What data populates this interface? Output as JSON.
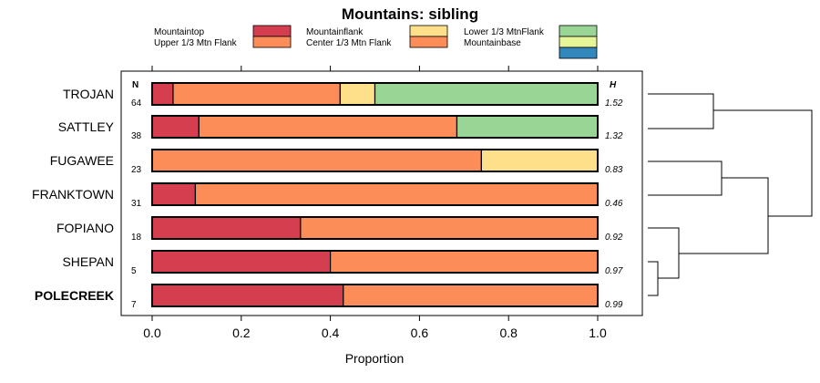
{
  "chart_data": {
    "type": "bar",
    "subtype": "stacked-horizontal-proportion",
    "title": "Mountains: sibling",
    "xlabel": "Proportion",
    "xlim": [
      0,
      1
    ],
    "xticks": [
      "0.0",
      "0.2",
      "0.4",
      "0.6",
      "0.8",
      "1.0"
    ],
    "n_header": "N",
    "h_header": "H",
    "legend": [
      {
        "name": "Mountaintop",
        "color": "#d53e4f"
      },
      {
        "name": "Upper 1/3 Mtn Flank",
        "color": "#fc8d59"
      },
      {
        "name": "Mountainflank",
        "color": "#fee08b"
      },
      {
        "name": "Center 1/3 Mtn Flank",
        "color": "#fc8d59"
      },
      {
        "name": "Lower 1/3 MtnFlank",
        "color": "#99d594"
      },
      {
        "name": "Mountainbase",
        "color": "#e6f598"
      },
      {
        "name": "",
        "color": "#3288bd"
      }
    ],
    "categories": [
      "TROJAN",
      "SATTLEY",
      "FUGAWEE",
      "FRANKTOWN",
      "FOPIANO",
      "SHEPAN",
      "POLECREEK"
    ],
    "highlighted": "POLECREEK",
    "n": [
      "64",
      "38",
      "23",
      "31",
      "18",
      "5",
      "7"
    ],
    "h": [
      "1.52",
      "1.32",
      "0.83",
      "0.46",
      "0.92",
      "0.97",
      "0.99"
    ],
    "series": [
      {
        "name": "Mountaintop",
        "color": "#d53e4f",
        "values": [
          0.047,
          0.105,
          0.0,
          0.097,
          0.333,
          0.4,
          0.429
        ]
      },
      {
        "name": "Upper 1/3 Mtn Flank",
        "color": "#fc8d59",
        "values": [
          0.375,
          0.579,
          0.739,
          0.903,
          0.667,
          0.6,
          0.571
        ]
      },
      {
        "name": "Mountainflank",
        "color": "#fee08b",
        "values": [
          0.078,
          0.0,
          0.261,
          0.0,
          0.0,
          0.0,
          0.0
        ]
      },
      {
        "name": "Lower 1/3 MtnFlank",
        "color": "#99d594",
        "values": [
          0.5,
          0.316,
          0.0,
          0.0,
          0.0,
          0.0,
          0.0
        ]
      }
    ],
    "dendrogram": "clustering tree of the seven sites shown at right"
  }
}
